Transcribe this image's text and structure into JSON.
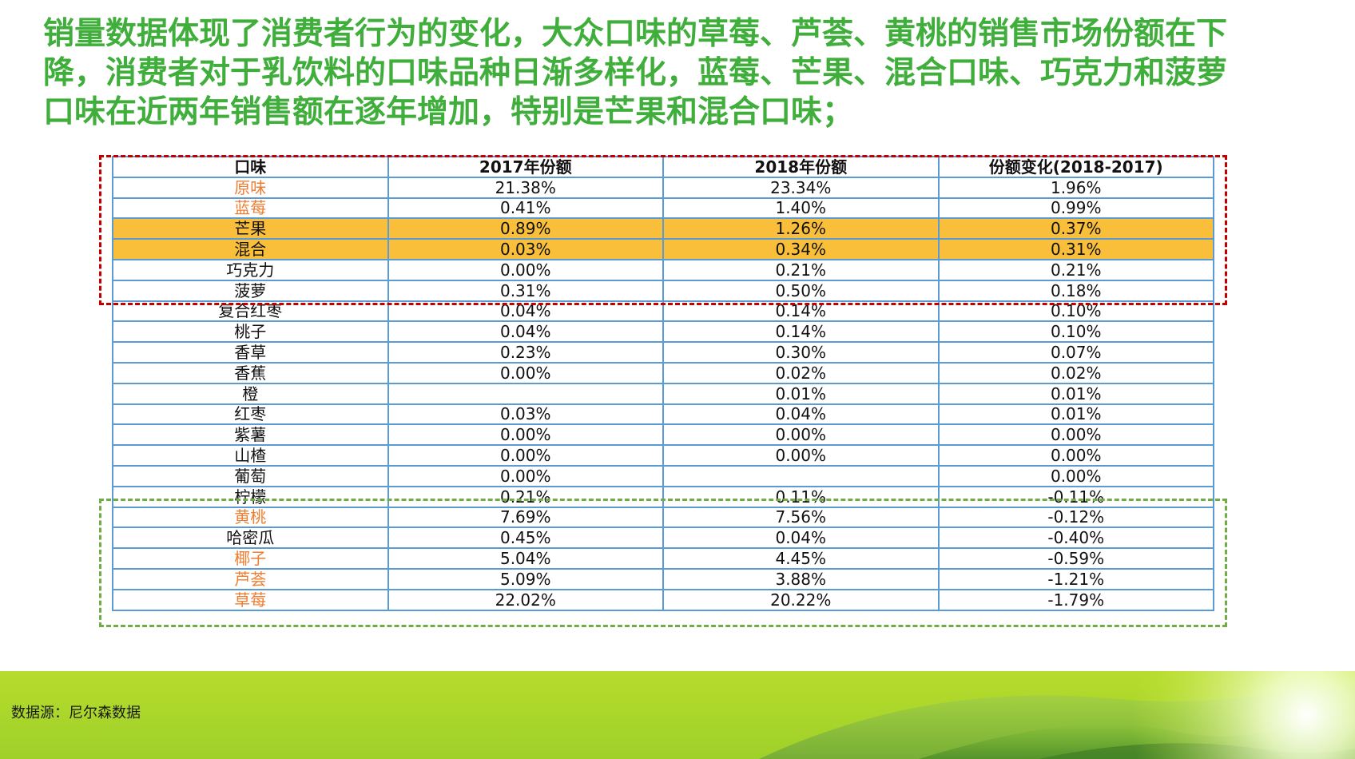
{
  "headline": {
    "line1": "销量数据体现了消费者行为的变化，大众口味的草莓、芦荟、黄桃的销售市场份额在下",
    "line2": "降，消费者对于乳饮料的口味品种日渐多样化，蓝莓、芒果、混合口味、巧克力和菠萝",
    "line3": "口味在近两年销售额在逐年增加，特别是芒果和混合口味；"
  },
  "table": {
    "headers": [
      "口味",
      "2017年份额",
      "2018年份额",
      "份额变化(2018-2017)"
    ],
    "rows": [
      [
        "原味",
        "21.38%",
        "23.34%",
        "1.96%"
      ],
      [
        "蓝莓",
        "0.41%",
        "1.40%",
        "0.99%"
      ],
      [
        "芒果",
        "0.89%",
        "1.26%",
        "0.37%"
      ],
      [
        "混合",
        "0.03%",
        "0.34%",
        "0.31%"
      ],
      [
        "巧克力",
        "0.00%",
        "0.21%",
        "0.21%"
      ],
      [
        "菠萝",
        "0.31%",
        "0.50%",
        "0.18%"
      ],
      [
        "复合红枣",
        "0.04%",
        "0.14%",
        "0.10%"
      ],
      [
        "桃子",
        "0.04%",
        "0.14%",
        "0.10%"
      ],
      [
        "香草",
        "0.23%",
        "0.30%",
        "0.07%"
      ],
      [
        "香蕉",
        "0.00%",
        "0.02%",
        "0.02%"
      ],
      [
        "橙",
        "",
        "0.01%",
        "0.01%"
      ],
      [
        "红枣",
        "0.03%",
        "0.04%",
        "0.01%"
      ],
      [
        "紫薯",
        "0.00%",
        "0.00%",
        "0.00%"
      ],
      [
        "山楂",
        "0.00%",
        "0.00%",
        "0.00%"
      ],
      [
        "葡萄",
        "0.00%",
        "",
        "0.00%"
      ],
      [
        "柠檬",
        "0.21%",
        "0.11%",
        "-0.11%"
      ],
      [
        "黄桃",
        "7.69%",
        "7.56%",
        "-0.12%"
      ],
      [
        "哈密瓜",
        "0.45%",
        "0.04%",
        "-0.40%"
      ],
      [
        "椰子",
        "5.04%",
        "4.45%",
        "-0.59%"
      ],
      [
        "芦荟",
        "5.09%",
        "3.88%",
        "-1.21%"
      ],
      [
        "草莓",
        "22.02%",
        "20.22%",
        "-1.79%"
      ]
    ]
  },
  "colors": {
    "headline": "#3fae3b",
    "highlight_fill": "#f9bf3b",
    "orange_text": "#ed7d31",
    "grid": "#5b9bd5",
    "increase_box": "#c00000",
    "decrease_box": "#70ad47"
  },
  "source": "数据源：尼尔森数据"
}
